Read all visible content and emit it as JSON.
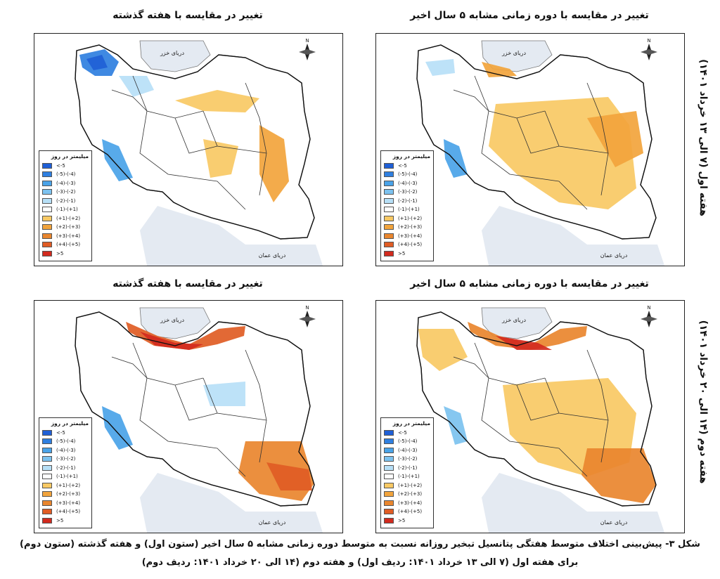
{
  "row_labels": [
    "هفته اول (۷ الی ۱۳ خرداد ۱۴۰۱)",
    "هفته دوم (۱۴ الی ۲۰ خرداد ۱۴۰۱)"
  ],
  "panels": [
    {
      "id": "p1",
      "title": "تغییر در مقایسه با هفته گذشته"
    },
    {
      "id": "p2",
      "title": "تغییر در مقایسه با دوره زمانی مشابه ۵ سال اخیر"
    },
    {
      "id": "p3",
      "title": "تغییر در مقایسه با هفته گذشته"
    },
    {
      "id": "p4",
      "title": "تغییر در مقایسه با دوره زمانی مشابه ۵ سال اخیر"
    }
  ],
  "map_labels": {
    "caspian": "دریای خزر",
    "oman": "دریای عمان",
    "north": "N"
  },
  "legend": {
    "title": "میلیمتر در روز",
    "items": [
      {
        "label": "<-5",
        "color": "#1f5fd6"
      },
      {
        "label": "(-5)-(-4)",
        "color": "#2f7fe0"
      },
      {
        "label": "(-4)-(-3)",
        "color": "#4aa3e8"
      },
      {
        "label": "(-3)-(-2)",
        "color": "#7cc2ef"
      },
      {
        "label": "(-2)-(-1)",
        "color": "#b7e0f7"
      },
      {
        "label": "(-1)-(+1)",
        "color": "#ffffff"
      },
      {
        "label": "(+1)-(+2)",
        "color": "#f8c964"
      },
      {
        "label": "(+2)-(+3)",
        "color": "#f2a43c"
      },
      {
        "label": "(+3)-(+4)",
        "color": "#e9862e"
      },
      {
        "label": "(+4)-(+5)",
        "color": "#e05c24"
      },
      {
        "label": ">5",
        "color": "#d22a1e"
      }
    ]
  },
  "caption": {
    "line1": "شکل ۳- پیش‌بینی اختلاف متوسط هفتگی پتانسیل تبخیر روزانه نسبت به متوسط دوره زمانی مشابه ۵ سال اخیر (ستون اول) و هفته گذشته (ستون دوم)",
    "line2": "برای هفته اول (۷ الی ۱۳ خرداد ۱۴۰۱: ردیف اول) و هفته دوم (۱۴ الی ۲۰ خرداد ۱۴۰۱: ردیف دوم)"
  }
}
